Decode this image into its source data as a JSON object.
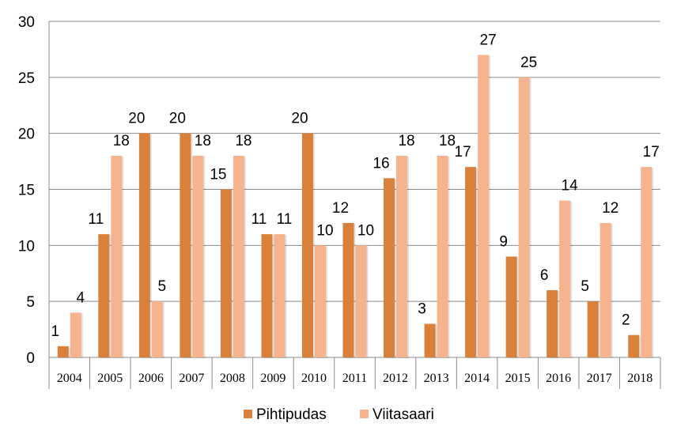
{
  "chart_data": {
    "type": "bar",
    "categories": [
      "2004",
      "2005",
      "2006",
      "2007",
      "2008",
      "2009",
      "2010",
      "2011",
      "2012",
      "2013",
      "2014",
      "2015",
      "2016",
      "2017",
      "2018"
    ],
    "series": [
      {
        "name": "Pihtipudas",
        "color": "#d9803a",
        "values": [
          1,
          11,
          20,
          20,
          15,
          11,
          20,
          12,
          16,
          3,
          17,
          9,
          6,
          5,
          2
        ]
      },
      {
        "name": "Viitasaari",
        "color": "#f5b48e",
        "values": [
          4,
          18,
          5,
          18,
          18,
          11,
          10,
          10,
          18,
          18,
          27,
          25,
          14,
          12,
          17
        ]
      }
    ],
    "ylim": [
      0,
      30
    ],
    "yticks": [
      0,
      5,
      10,
      15,
      20,
      25,
      30
    ],
    "grid": true,
    "legend_position": "bottom"
  }
}
